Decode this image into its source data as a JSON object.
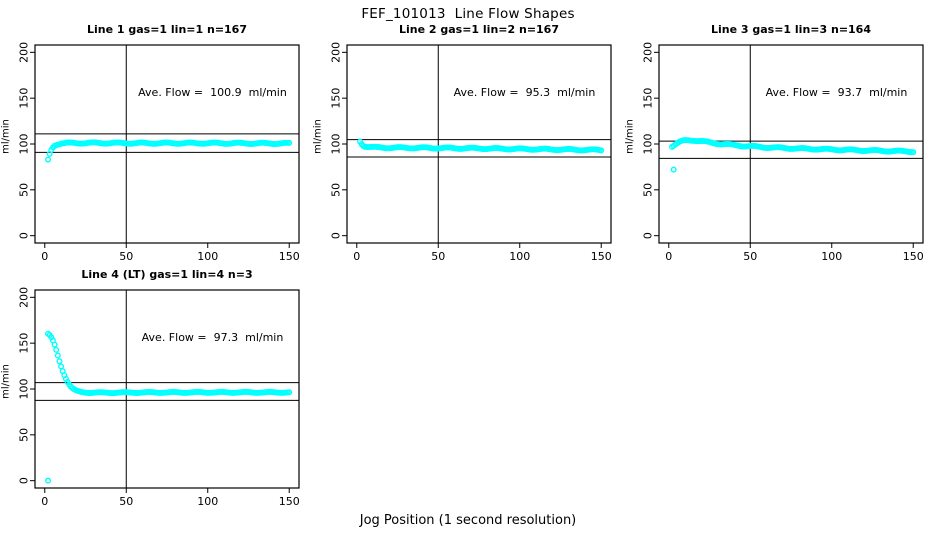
{
  "chart_data": {
    "type": "scatter",
    "title": "FEF_101013  Line Flow Shapes",
    "xlabel": "Jog Position (1 second resolution)",
    "ylabel": "ml/min",
    "xlim": [
      0,
      150
    ],
    "ylim": [
      0,
      200
    ],
    "x_ticks": [
      0,
      50,
      100,
      150
    ],
    "y_ticks": [
      0,
      50,
      100,
      150,
      200
    ],
    "grid": false,
    "legend": "none",
    "point_style": "open-circle",
    "point_color": "#00ffff",
    "line_color": "#000000",
    "panels": [
      {
        "title": "Line 1 gas=1 lin=1 n=167",
        "ave_flow_label": "Ave. Flow =  100.9  ml/min",
        "ave_flow": 100.9,
        "n": 167,
        "ref_lines_y": [
          111.0,
          90.8
        ],
        "vline_x": 50,
        "x_range": [
          2,
          150
        ],
        "seed": 1,
        "jitter": 0.7,
        "anchors": [
          [
            2,
            82.5
          ],
          [
            3,
            89
          ],
          [
            4,
            93.5
          ],
          [
            5,
            96.5
          ],
          [
            6,
            98.5
          ],
          [
            8,
            100
          ],
          [
            10,
            100.7
          ],
          [
            15,
            101
          ],
          [
            30,
            101.1
          ],
          [
            60,
            100.9
          ],
          [
            100,
            100.9
          ],
          [
            150,
            100.6
          ]
        ],
        "outliers": []
      },
      {
        "title": "Line 2 gas=1 lin=2 n=167",
        "ave_flow_label": "Ave. Flow =  95.3  ml/min",
        "ave_flow": 95.3,
        "n": 167,
        "ref_lines_y": [
          104.8,
          85.8
        ],
        "vline_x": 50,
        "x_range": [
          2,
          150
        ],
        "seed": 2,
        "jitter": 0.7,
        "anchors": [
          [
            2,
            103
          ],
          [
            3,
            100.5
          ],
          [
            4,
            98.5
          ],
          [
            5,
            97.5
          ],
          [
            7,
            96.8
          ],
          [
            10,
            96.3
          ],
          [
            20,
            96
          ],
          [
            40,
            95.8
          ],
          [
            70,
            95.3
          ],
          [
            100,
            94.6
          ],
          [
            125,
            94
          ],
          [
            150,
            93.4
          ]
        ],
        "outliers": []
      },
      {
        "title": "Line 3 gas=1 lin=3 n=164",
        "ave_flow_label": "Ave. Flow =  93.7  ml/min",
        "ave_flow": 93.7,
        "n": 164,
        "ref_lines_y": [
          103.1,
          84.3
        ],
        "vline_x": 50,
        "x_range": [
          2,
          150
        ],
        "seed": 3,
        "jitter": 0.7,
        "anchors": [
          [
            2,
            97.5
          ],
          [
            4,
            99.5
          ],
          [
            6,
            101.5
          ],
          [
            9,
            103.5
          ],
          [
            12,
            104.2
          ],
          [
            16,
            104
          ],
          [
            22,
            102.5
          ],
          [
            30,
            100.5
          ],
          [
            45,
            98
          ],
          [
            60,
            96.3
          ],
          [
            80,
            95
          ],
          [
            100,
            94
          ],
          [
            125,
            92.8
          ],
          [
            150,
            91.8
          ]
        ],
        "outliers": [
          [
            3,
            72
          ]
        ]
      },
      {
        "title": "Line 4 (LT) gas=1 lin=4 n=3",
        "ave_flow_label": "Ave. Flow =  97.3  ml/min",
        "ave_flow": 97.3,
        "n": 3,
        "ref_lines_y": [
          107.0,
          87.6
        ],
        "vline_x": 50,
        "x_range": [
          2,
          150
        ],
        "seed": 4,
        "jitter": 0.5,
        "anchors": [
          [
            2,
            160
          ],
          [
            3,
            158.5
          ],
          [
            4,
            156
          ],
          [
            5,
            152.5
          ],
          [
            6,
            148
          ],
          [
            7,
            142.5
          ],
          [
            8,
            136.5
          ],
          [
            9,
            130.5
          ],
          [
            10,
            125
          ],
          [
            11,
            120
          ],
          [
            12,
            115.5
          ],
          [
            13,
            111.5
          ],
          [
            14,
            108
          ],
          [
            15,
            105
          ],
          [
            16,
            102.5
          ],
          [
            17,
            100.7
          ],
          [
            18,
            99.3
          ],
          [
            19,
            98.3
          ],
          [
            20,
            97.6
          ],
          [
            22,
            96.8
          ],
          [
            25,
            96.3
          ],
          [
            30,
            96
          ],
          [
            40,
            96
          ],
          [
            60,
            96.2
          ],
          [
            100,
            96.3
          ],
          [
            150,
            96.3
          ]
        ],
        "outliers": [
          [
            2,
            0
          ]
        ]
      }
    ]
  }
}
